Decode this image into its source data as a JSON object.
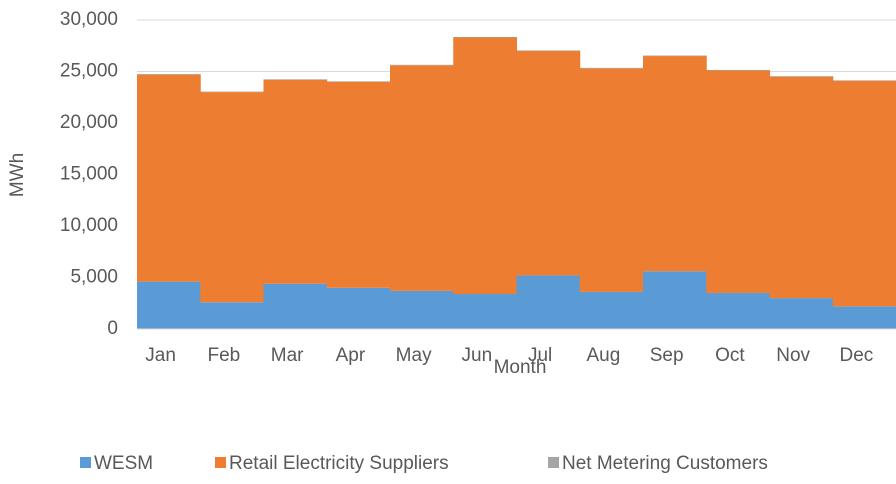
{
  "chart_data": {
    "type": "stacked_bar",
    "x_label": "Month",
    "y_label": "MWh",
    "categories": [
      "Jan",
      "Feb",
      "Mar",
      "Apr",
      "May",
      "Jun",
      "Jul",
      "Aug",
      "Sep",
      "Oct",
      "Nov",
      "Dec"
    ],
    "series": [
      {
        "name": "WESM",
        "color": "#5b9bd5",
        "values": [
          4600,
          2600,
          4400,
          4000,
          3700,
          3400,
          5200,
          3600,
          5600,
          3500,
          3000,
          2200
        ]
      },
      {
        "name": "Retail Electricity Suppliers",
        "color": "#ed7d31",
        "values": [
          20100,
          20400,
          19800,
          20000,
          21900,
          24900,
          21800,
          21700,
          20900,
          21600,
          21500,
          21900
        ]
      },
      {
        "name": "Net Metering Customers",
        "color": "#a5a5a5",
        "values": [
          50,
          50,
          50,
          50,
          50,
          50,
          50,
          50,
          50,
          50,
          50,
          50
        ]
      }
    ],
    "ylim": [
      0,
      30000
    ],
    "yticks": [
      0,
      {
        "value": 5000,
        "label": "5,000"
      },
      {
        "value": 10000,
        "label": "10,000"
      },
      {
        "value": 15000,
        "label": "15,000"
      },
      {
        "value": 20000,
        "label": "20,000"
      },
      {
        "value": 25000,
        "label": "25,000"
      },
      {
        "value": 30000,
        "label": "30,000"
      }
    ],
    "grid": true,
    "legend": "bottom"
  }
}
